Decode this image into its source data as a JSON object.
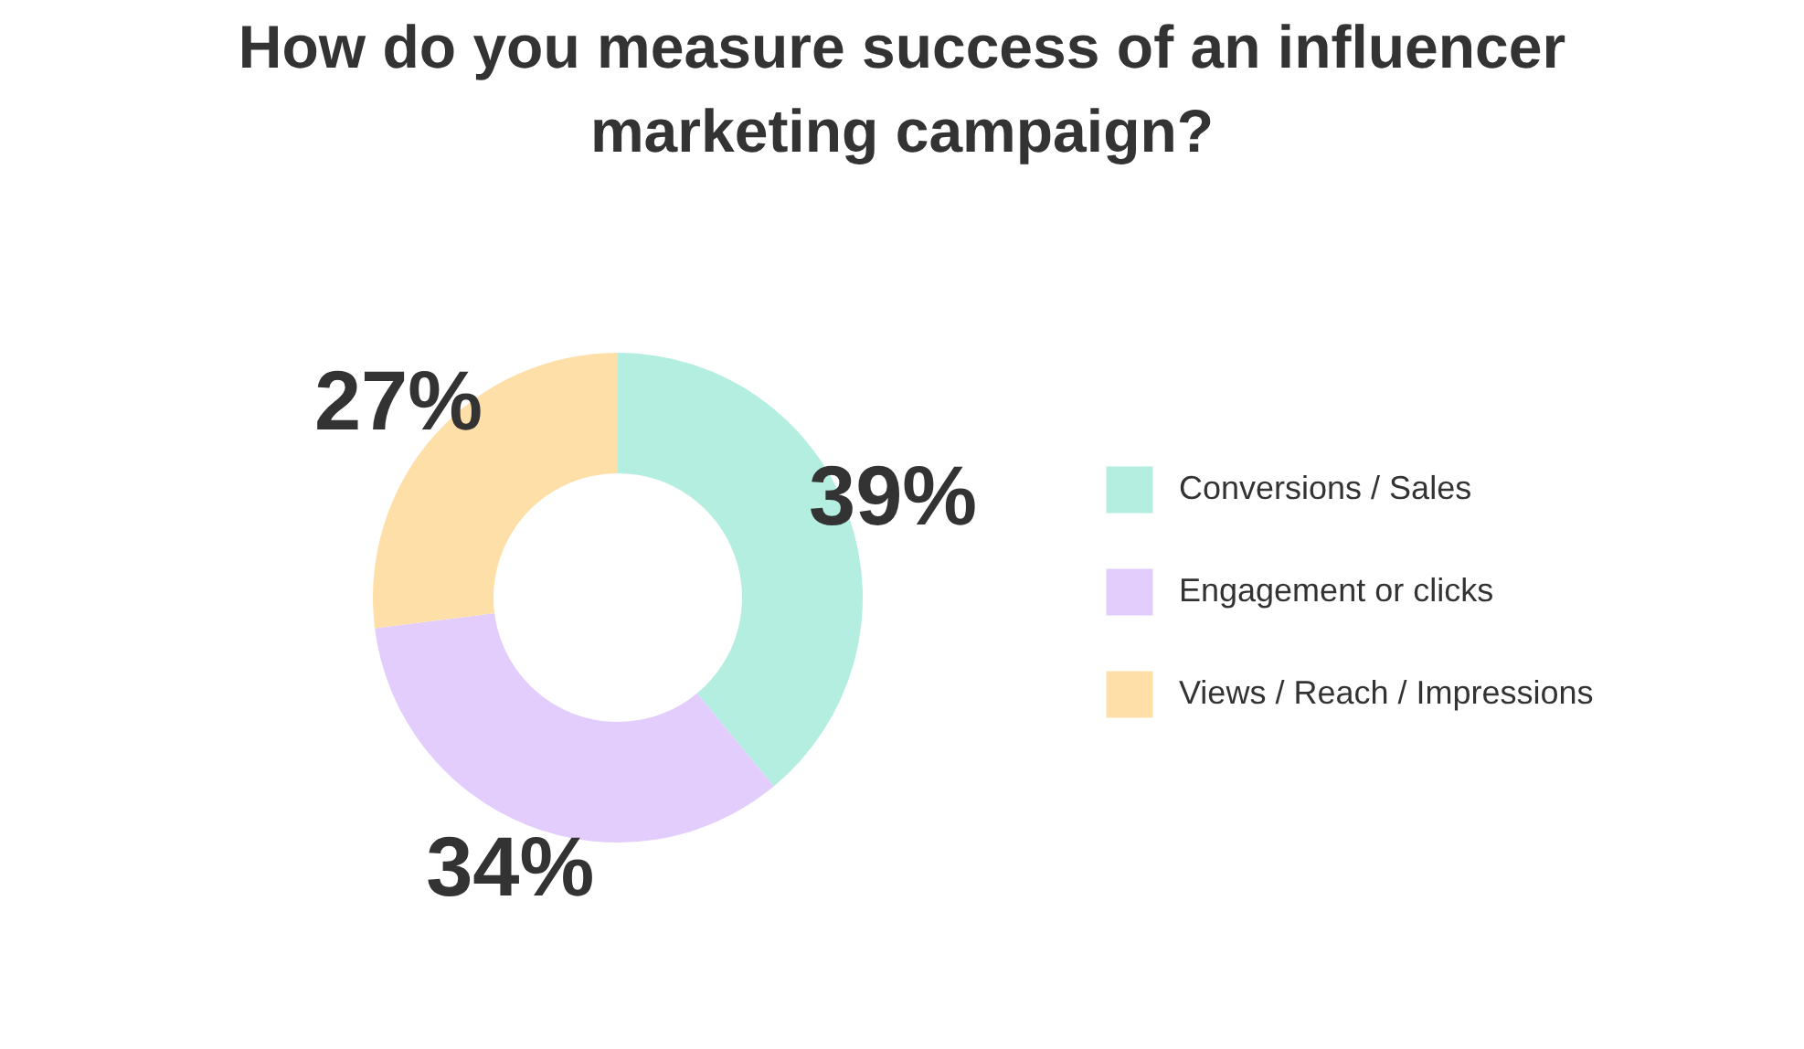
{
  "chart_data": {
    "type": "donut",
    "title": "How do you measure success of an influencer marketing campaign?",
    "categories": [
      "Conversions / Sales",
      "Engagement or clicks",
      "Views / Reach / Impressions"
    ],
    "values": [
      39,
      34,
      27
    ],
    "colors": [
      "#b3eee0",
      "#e2cdfd",
      "#ffdfa8"
    ],
    "value_labels": [
      "39%",
      "34%",
      "27%"
    ],
    "legend": "right"
  }
}
